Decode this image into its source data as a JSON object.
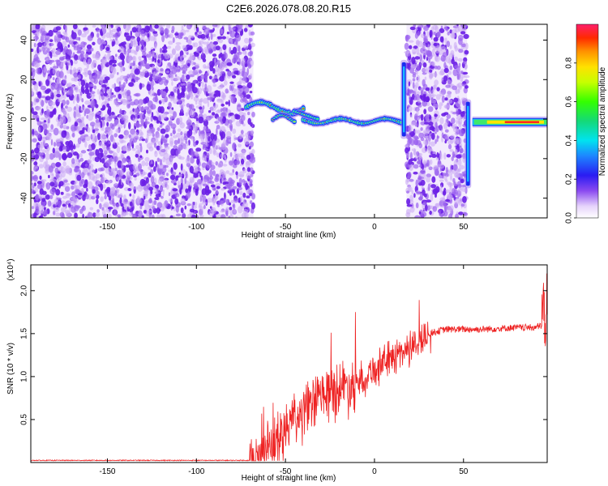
{
  "title": "C2E6.2026.078.08.20.R15",
  "colors": {
    "snr_line": "#ee2222",
    "noise_purple": "#6a1ee6",
    "noise_light": "#c9a8f4",
    "axis": "#000000"
  },
  "chart_data": [
    {
      "type": "heatmap",
      "name": "spectrogram",
      "xlabel": "Height of straight line (km)",
      "ylabel": "Frequency (Hz)",
      "xlim": [
        -193,
        97
      ],
      "ylim": [
        -50,
        48
      ],
      "xticks": [
        -150,
        -100,
        -50,
        0,
        50
      ],
      "yticks": [
        -40,
        -20,
        0,
        20,
        40
      ],
      "colorbar": {
        "label": "Normalized spectral amplitude",
        "range": [
          0,
          1
        ],
        "ticks": [
          0.0,
          0.2,
          0.4,
          0.6,
          0.8
        ],
        "tick_labels": [
          "0.0",
          "0.2",
          "0.4",
          "0.6",
          "0.8"
        ]
      },
      "regions": [
        {
          "kind": "noise",
          "x": [
            -193,
            -68
          ],
          "y": [
            -50,
            48
          ]
        },
        {
          "kind": "noise",
          "x": [
            18,
            52
          ],
          "y": [
            -50,
            48
          ]
        },
        {
          "kind": "signal",
          "x": [
            -72,
            -40
          ],
          "y": [
            3,
            10
          ]
        },
        {
          "kind": "signal",
          "x": [
            -40,
            15
          ],
          "y": [
            -4,
            2
          ]
        },
        {
          "kind": "signal",
          "x": [
            55,
            97
          ],
          "y": [
            -3,
            0
          ]
        },
        {
          "kind": "spike",
          "x": [
            16,
            17
          ],
          "y": [
            -10,
            30
          ]
        },
        {
          "kind": "spike",
          "x": [
            52,
            53
          ],
          "y": [
            -35,
            10
          ]
        }
      ]
    },
    {
      "type": "line",
      "name": "snr",
      "xlabel": "Height of straight line (km)",
      "ylabel": "SNR (10 * v/v)",
      "y_multiplier": "(x10⁴)",
      "xlim": [
        -193,
        97
      ],
      "ylim": [
        0,
        2.3
      ],
      "xticks": [
        -150,
        -100,
        -50,
        0,
        50
      ],
      "yticks": [
        0.5,
        1.0,
        1.5,
        2.0
      ],
      "ytick_labels": [
        "0.5",
        "1.0",
        "1.5",
        "2.0"
      ],
      "series": [
        {
          "x": [
            -193,
            -100,
            -70,
            -60,
            -50,
            -40,
            -30,
            -20,
            -10,
            0,
            10,
            20,
            30,
            40,
            50,
            60,
            70,
            80,
            90,
            95,
            97
          ],
          "y": [
            0.02,
            0.02,
            0.03,
            0.15,
            0.4,
            0.6,
            0.8,
            0.9,
            0.95,
            1.1,
            1.25,
            1.35,
            1.5,
            1.55,
            1.55,
            1.55,
            1.56,
            1.57,
            1.57,
            1.6,
            2.2
          ]
        }
      ]
    }
  ]
}
